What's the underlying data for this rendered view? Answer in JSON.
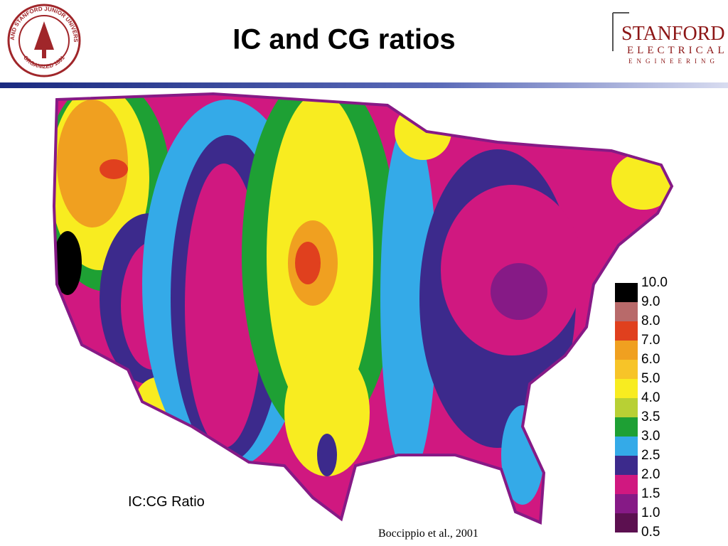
{
  "header": {
    "title": "IC and CG ratios",
    "seal": {
      "ring_text": "LELAND STANFORD JUNIOR UNIVERSITY",
      "bottom_text": "ORGANIZED 1891"
    },
    "logo": {
      "line1": "STANFORD",
      "line2": "ELECTRICAL",
      "line3": "ENGINEERING"
    }
  },
  "figure": {
    "caption": "IC:CG Ratio",
    "citation": "Boccippio et al., 2001",
    "legend": {
      "labels": [
        "10.0",
        "9.0",
        "8.0",
        "7.0",
        "6.0",
        "5.0",
        "4.0",
        "3.5",
        "3.0",
        "2.5",
        "2.0",
        "1.5",
        "1.0",
        "0.5"
      ],
      "colors": [
        "#000000",
        "#b86a6a",
        "#e0401e",
        "#f0a020",
        "#f7c428",
        "#f8ec20",
        "#b8d034",
        "#1ea034",
        "#34aae8",
        "#3c2a8c",
        "#d01880",
        "#861a86",
        "#5c1050"
      ]
    }
  }
}
